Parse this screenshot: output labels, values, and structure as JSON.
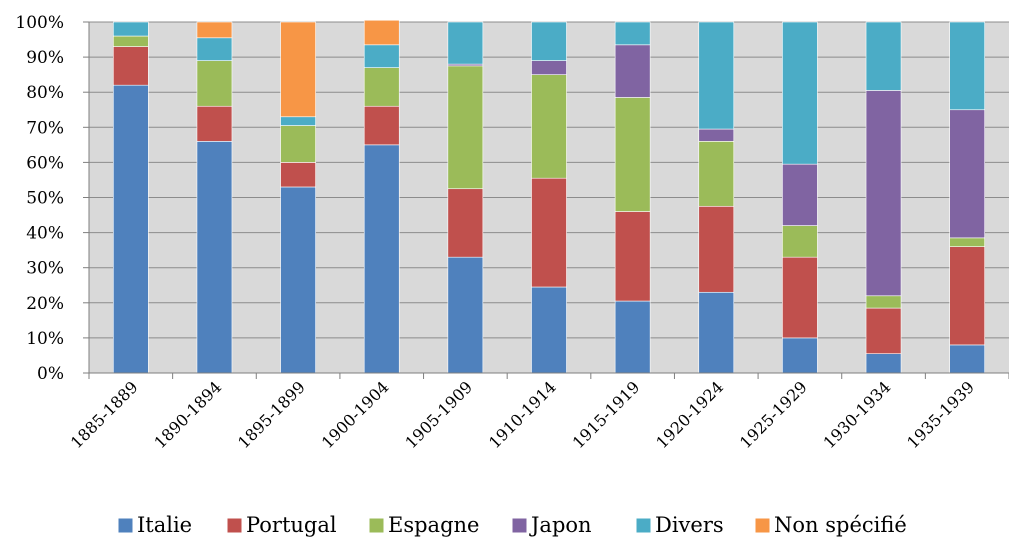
{
  "chart_data": {
    "type": "bar",
    "stacked": true,
    "percent": true,
    "categories": [
      "1885-1889",
      "1890-1894",
      "1895-1899",
      "1900-1904",
      "1905-1909",
      "1910-1914",
      "1915-1919",
      "1920-1924",
      "1925-1929",
      "1930-1934",
      "1935-1939"
    ],
    "series": [
      {
        "name": "Italie",
        "color": "#4F81BD",
        "values": [
          82,
          66,
          53,
          65,
          33,
          24.5,
          20.5,
          23,
          10,
          5.5,
          8
        ]
      },
      {
        "name": "Portugal",
        "color": "#C0504D",
        "values": [
          11,
          10,
          7,
          11,
          19.5,
          31,
          25.5,
          24.5,
          23,
          13,
          28
        ]
      },
      {
        "name": "Espagne",
        "color": "#9BBB59",
        "values": [
          3,
          13,
          10.5,
          11,
          35,
          29.5,
          32.5,
          18.5,
          9,
          3.5,
          2.5
        ]
      },
      {
        "name": "Japon",
        "color": "#8064A2",
        "values": [
          0,
          0,
          0,
          0,
          0.5,
          4,
          15,
          3.5,
          17.5,
          58.5,
          36.5
        ]
      },
      {
        "name": "Divers",
        "color": "#4BACC6",
        "values": [
          4,
          6.5,
          2.5,
          6.5,
          12,
          11,
          6.5,
          30.5,
          40.5,
          19.5,
          25
        ]
      },
      {
        "name": "Non spécifié",
        "color": "#F79646",
        "values": [
          0,
          4.5,
          27,
          7,
          0,
          0,
          0,
          0,
          0,
          0,
          0
        ]
      }
    ],
    "ylim": [
      0,
      100
    ],
    "yticks": [
      "0%",
      "10%",
      "20%",
      "30%",
      "40%",
      "50%",
      "60%",
      "70%",
      "80%",
      "90%",
      "100%"
    ],
    "grid": true,
    "legend": "bottom",
    "plot_background": "#D9D9D9"
  }
}
